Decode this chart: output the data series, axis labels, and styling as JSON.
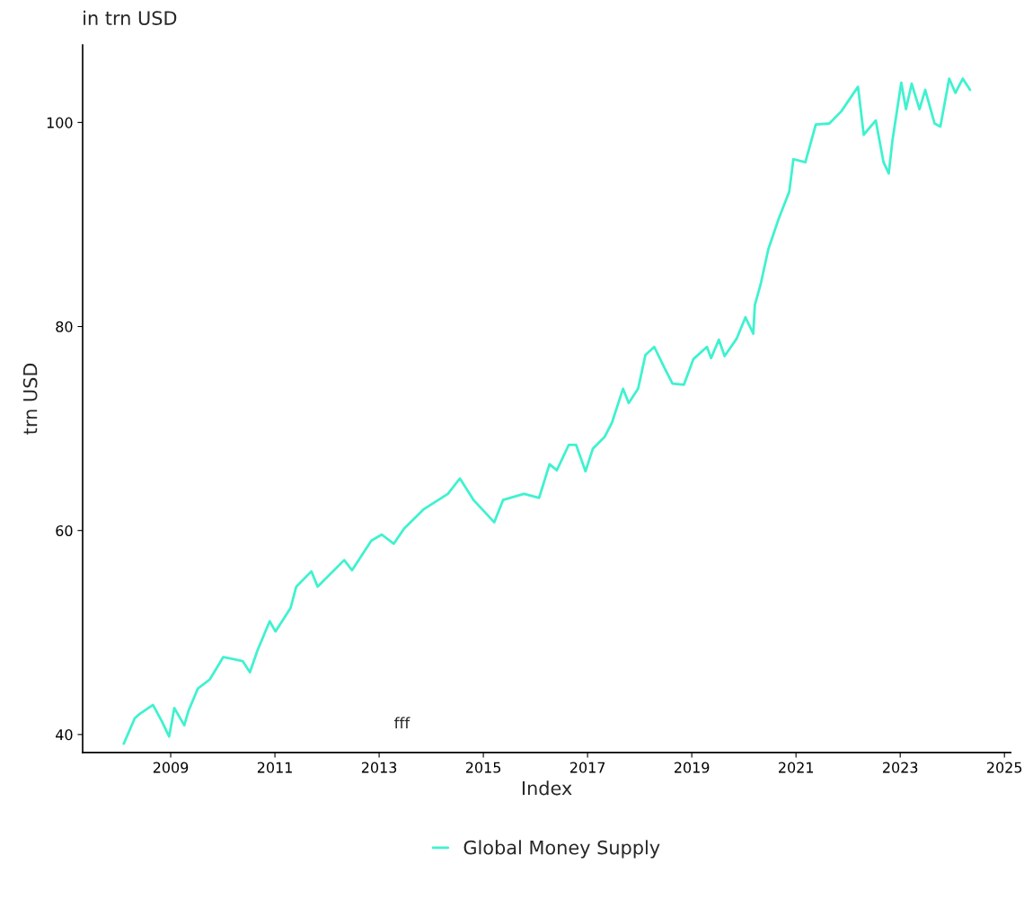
{
  "chart_data": {
    "type": "line",
    "title": "in trn USD",
    "xlabel": "Index",
    "ylabel": "trn USD",
    "x": [
      2008.1,
      2008.31,
      2008.4,
      2008.66,
      2008.83,
      2008.97,
      2009.07,
      2009.26,
      2009.34,
      2009.52,
      2009.75,
      2010.01,
      2010.38,
      2010.52,
      2010.67,
      2010.9,
      2011.01,
      2011.3,
      2011.41,
      2011.7,
      2011.82,
      2012.33,
      2012.48,
      2012.85,
      2013.05,
      2013.28,
      2013.48,
      2013.86,
      2014.32,
      2014.55,
      2014.81,
      2015.21,
      2015.38,
      2015.78,
      2016.07,
      2016.27,
      2016.41,
      2016.64,
      2016.78,
      2016.96,
      2017.1,
      2017.33,
      2017.47,
      2017.68,
      2017.79,
      2017.97,
      2018.11,
      2018.28,
      2018.48,
      2018.63,
      2018.85,
      2019.03,
      2019.29,
      2019.37,
      2019.52,
      2019.63,
      2019.86,
      2020.03,
      2020.18,
      2020.21,
      2020.32,
      2020.47,
      2020.67,
      2020.87,
      2020.95,
      2021.18,
      2021.38,
      2021.64,
      2021.87,
      2022.19,
      2022.3,
      2022.53,
      2022.68,
      2022.78,
      2022.85,
      2023.02,
      2023.11,
      2023.22,
      2023.37,
      2023.48,
      2023.66,
      2023.77,
      2023.94,
      2024.06,
      2024.2,
      2024.34
    ],
    "series": [
      {
        "name": "Global Money Supply",
        "color": "#3ff2cf",
        "values": [
          39.1,
          41.6,
          42.0,
          42.9,
          41.3,
          39.8,
          42.6,
          40.9,
          42.3,
          44.5,
          45.4,
          47.6,
          47.2,
          46.1,
          48.3,
          51.1,
          50.1,
          52.4,
          54.5,
          56.0,
          54.5,
          57.1,
          56.1,
          59.0,
          59.6,
          58.7,
          60.2,
          62.1,
          63.6,
          65.1,
          63.0,
          60.8,
          63.0,
          63.6,
          63.2,
          66.5,
          65.9,
          68.4,
          68.4,
          65.8,
          68.0,
          69.2,
          70.6,
          73.9,
          72.5,
          73.9,
          77.2,
          78.0,
          75.9,
          74.4,
          74.3,
          76.8,
          78.0,
          76.9,
          78.7,
          77.1,
          78.8,
          80.9,
          79.3,
          82.1,
          84.1,
          87.6,
          90.6,
          93.2,
          96.4,
          96.1,
          99.8,
          99.9,
          101.1,
          103.5,
          98.8,
          100.2,
          96.1,
          95.0,
          98.2,
          103.9,
          101.3,
          103.8,
          101.3,
          103.2,
          99.9,
          99.6,
          104.3,
          102.9,
          104.3,
          103.2
        ]
      }
    ],
    "xlim": [
      2007.31,
      2025.12
    ],
    "ylim": [
      38.24,
      107.6
    ],
    "xticks": [
      2009,
      2011,
      2013,
      2015,
      2017,
      2019,
      2021,
      2023,
      2025
    ],
    "yticks": [
      40,
      60,
      80,
      100
    ],
    "annotations": [
      "fff"
    ],
    "grid": false,
    "legend": "bottom",
    "line_style": "solid",
    "marker": "none"
  }
}
